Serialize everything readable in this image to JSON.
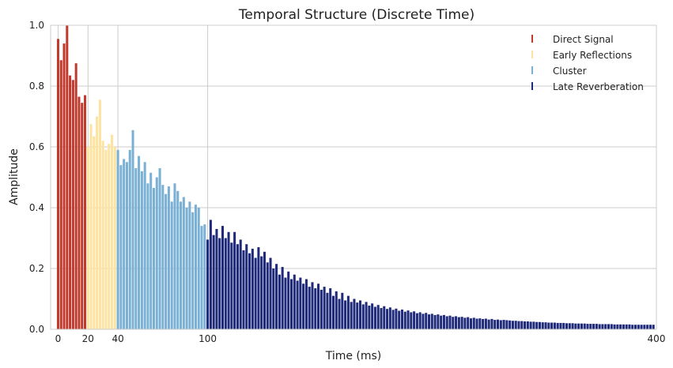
{
  "chart_data": {
    "type": "bar",
    "title": "Temporal Structure (Discrete Time)",
    "xlabel": "Time (ms)",
    "ylabel": "Amplitude",
    "xlim": [
      -5,
      400
    ],
    "ylim": [
      0,
      1.0
    ],
    "xticks": [
      0,
      20,
      40,
      100,
      400
    ],
    "yticks": [
      0.0,
      0.2,
      0.4,
      0.6,
      0.8,
      1.0
    ],
    "grid": true,
    "legend_position": "top-right",
    "sample_step_ms": 2,
    "series": [
      {
        "name": "Direct Signal",
        "color": "#c0392b",
        "x": [
          0,
          2,
          4,
          6,
          8,
          10,
          12,
          14,
          16,
          18
        ],
        "values": [
          0.955,
          0.885,
          0.94,
          1.0,
          0.835,
          0.82,
          0.875,
          0.765,
          0.745,
          0.77
        ]
      },
      {
        "name": "Early Reflections",
        "color": "#fde3a0",
        "x": [
          20,
          22,
          24,
          26,
          28,
          30,
          32,
          34,
          36,
          38
        ],
        "values": [
          0.6,
          0.675,
          0.635,
          0.7,
          0.755,
          0.62,
          0.59,
          0.61,
          0.64,
          0.6
        ]
      },
      {
        "name": "Cluster",
        "color": "#7ab0d4",
        "x": [
          40,
          42,
          44,
          46,
          48,
          50,
          52,
          54,
          56,
          58,
          60,
          62,
          64,
          66,
          68,
          70,
          72,
          74,
          76,
          78,
          80,
          82,
          84,
          86,
          88,
          90,
          92,
          94,
          96,
          98
        ],
        "values": [
          0.59,
          0.54,
          0.56,
          0.55,
          0.59,
          0.655,
          0.53,
          0.57,
          0.52,
          0.55,
          0.48,
          0.515,
          0.465,
          0.5,
          0.53,
          0.475,
          0.445,
          0.47,
          0.42,
          0.48,
          0.455,
          0.42,
          0.435,
          0.4,
          0.42,
          0.385,
          0.41,
          0.4,
          0.34,
          0.345
        ]
      },
      {
        "name": "Late Reverberation",
        "color": "#1f2a7a",
        "x": [
          100,
          102,
          104,
          106,
          108,
          110,
          112,
          114,
          116,
          118,
          120,
          122,
          124,
          126,
          128,
          130,
          132,
          134,
          136,
          138,
          140,
          142,
          144,
          146,
          148,
          150,
          152,
          154,
          156,
          158,
          160,
          162,
          164,
          166,
          168,
          170,
          172,
          174,
          176,
          178,
          180,
          182,
          184,
          186,
          188,
          190,
          192,
          194,
          196,
          198,
          200,
          202,
          204,
          206,
          208,
          210,
          212,
          214,
          216,
          218,
          220,
          222,
          224,
          226,
          228,
          230,
          232,
          234,
          236,
          238,
          240,
          242,
          244,
          246,
          248,
          250,
          252,
          254,
          256,
          258,
          260,
          262,
          264,
          266,
          268,
          270,
          272,
          274,
          276,
          278,
          280,
          282,
          284,
          286,
          288,
          290,
          292,
          294,
          296,
          298,
          300,
          302,
          304,
          306,
          308,
          310,
          312,
          314,
          316,
          318,
          320,
          322,
          324,
          326,
          328,
          330,
          332,
          334,
          336,
          338,
          340,
          342,
          344,
          346,
          348,
          350,
          352,
          354,
          356,
          358,
          360,
          362,
          364,
          366,
          368,
          370,
          372,
          374,
          376,
          378,
          380,
          382,
          384,
          386,
          388,
          390,
          392,
          394,
          396,
          398
        ],
        "values": [
          0.295,
          0.36,
          0.31,
          0.33,
          0.3,
          0.34,
          0.3,
          0.32,
          0.285,
          0.32,
          0.28,
          0.295,
          0.26,
          0.28,
          0.25,
          0.265,
          0.235,
          0.27,
          0.24,
          0.255,
          0.22,
          0.235,
          0.2,
          0.215,
          0.18,
          0.205,
          0.17,
          0.19,
          0.165,
          0.18,
          0.16,
          0.17,
          0.15,
          0.165,
          0.14,
          0.155,
          0.135,
          0.15,
          0.13,
          0.14,
          0.12,
          0.135,
          0.11,
          0.125,
          0.1,
          0.12,
          0.095,
          0.11,
          0.09,
          0.1,
          0.088,
          0.095,
          0.082,
          0.09,
          0.078,
          0.085,
          0.074,
          0.08,
          0.07,
          0.076,
          0.067,
          0.072,
          0.064,
          0.068,
          0.061,
          0.065,
          0.058,
          0.062,
          0.056,
          0.059,
          0.053,
          0.056,
          0.051,
          0.054,
          0.049,
          0.051,
          0.047,
          0.049,
          0.045,
          0.047,
          0.043,
          0.045,
          0.041,
          0.043,
          0.04,
          0.041,
          0.038,
          0.04,
          0.036,
          0.038,
          0.035,
          0.036,
          0.034,
          0.035,
          0.032,
          0.034,
          0.031,
          0.032,
          0.03,
          0.031,
          0.03,
          0.029,
          0.028,
          0.028,
          0.027,
          0.027,
          0.026,
          0.026,
          0.025,
          0.025,
          0.024,
          0.024,
          0.023,
          0.023,
          0.022,
          0.022,
          0.022,
          0.021,
          0.021,
          0.021,
          0.02,
          0.02,
          0.02,
          0.019,
          0.019,
          0.019,
          0.019,
          0.018,
          0.018,
          0.018,
          0.018,
          0.017,
          0.017,
          0.017,
          0.017,
          0.017,
          0.016,
          0.016,
          0.016,
          0.016,
          0.016,
          0.016,
          0.015,
          0.015,
          0.015,
          0.015,
          0.015,
          0.015,
          0.015,
          0.015
        ]
      }
    ]
  }
}
